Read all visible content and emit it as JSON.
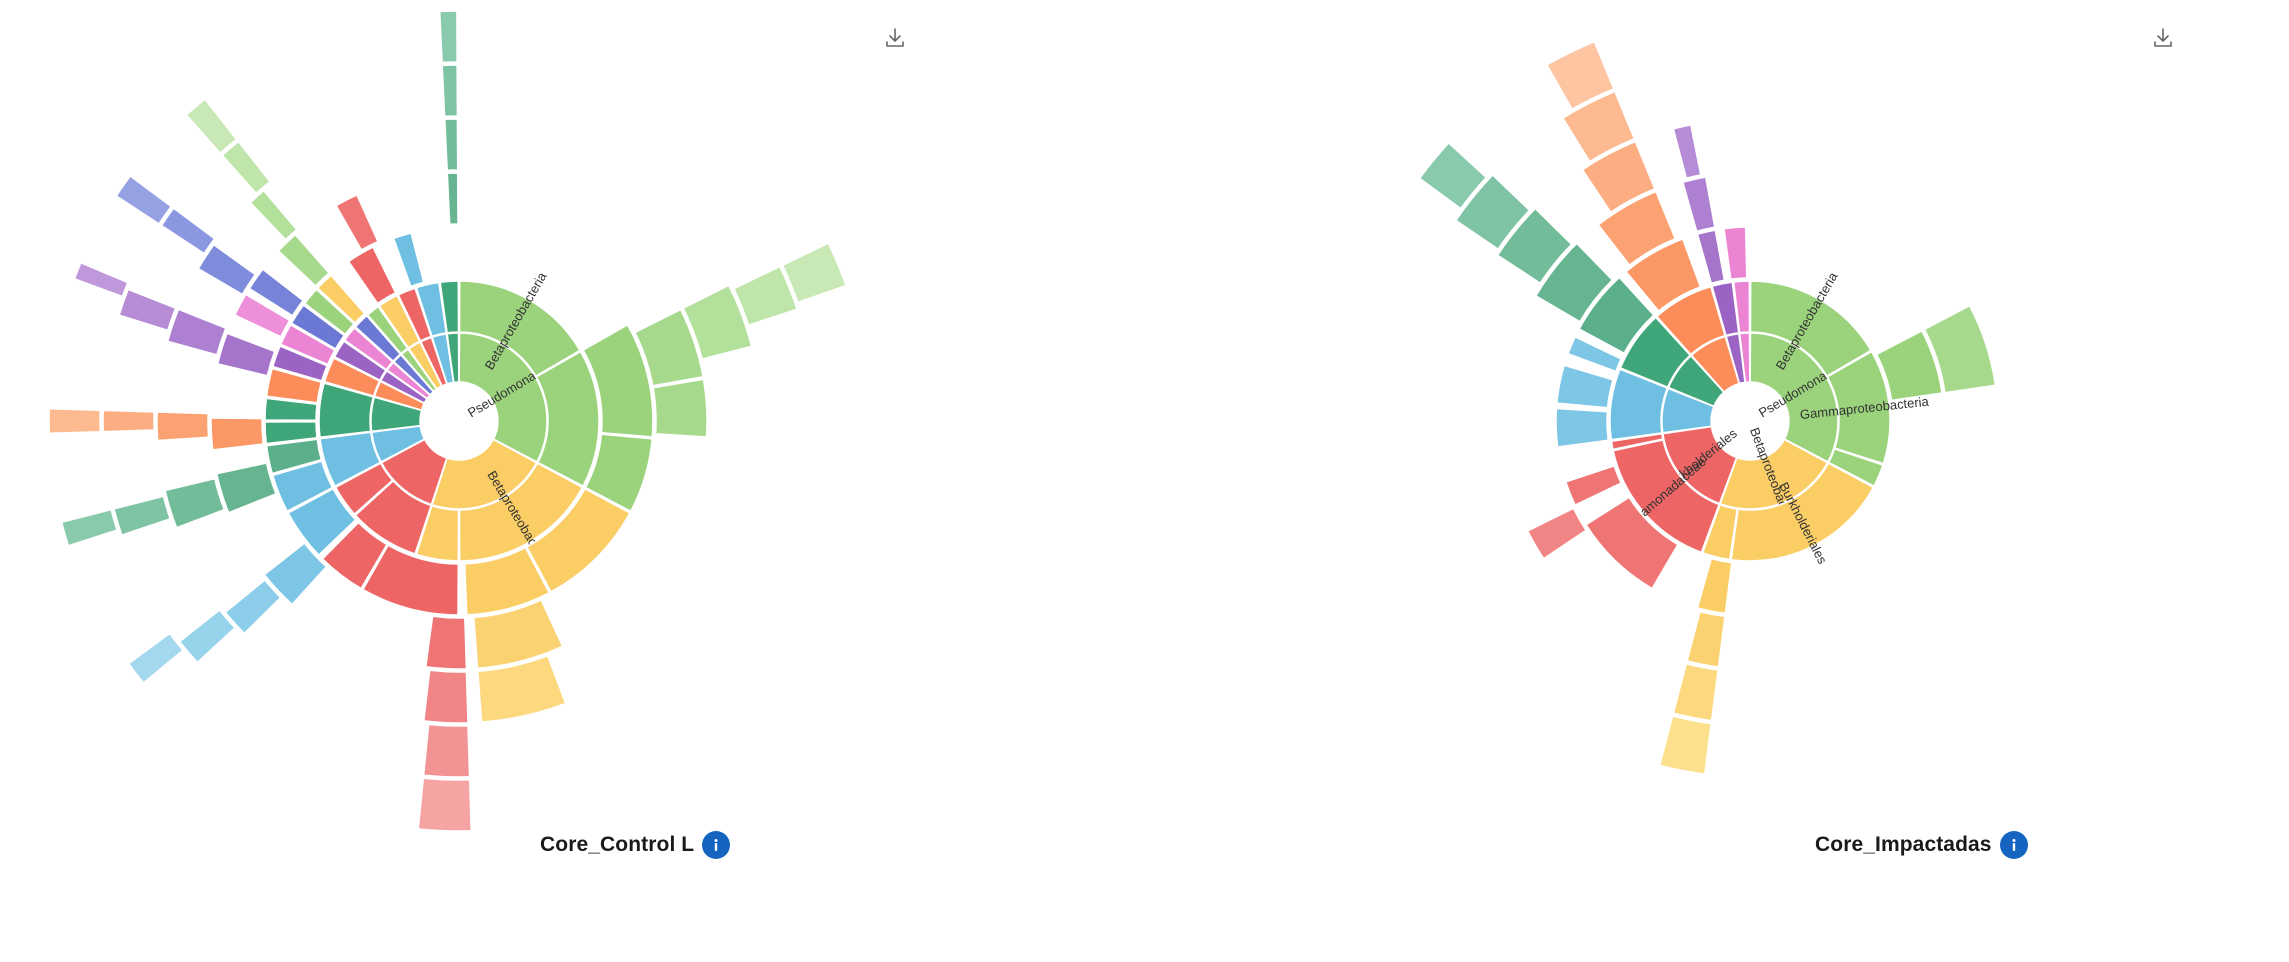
{
  "page": {
    "download_icon": "download-icon",
    "info_icon": "info-icon",
    "info_color": "#1565c0"
  },
  "chart_data": [
    {
      "type": "sunburst",
      "title": "Core_Control L",
      "center": "hole",
      "levels": 7,
      "segments": [
        {
          "level": 0,
          "start": 0,
          "end": 118,
          "color": "#9bd37d",
          "label": "Pseudomonadota"
        },
        {
          "level": 0,
          "start": 118,
          "end": 198,
          "color": "#fbcd65",
          "label": ""
        },
        {
          "level": 0,
          "start": 198,
          "end": 242,
          "color": "#ed6565",
          "label": ""
        },
        {
          "level": 0,
          "start": 242,
          "end": 263,
          "color": "#6ebfe2",
          "label": ""
        },
        {
          "level": 0,
          "start": 263,
          "end": 286,
          "color": "#3fa679",
          "label": ""
        },
        {
          "level": 0,
          "start": 286,
          "end": 297,
          "color": "#fc8c5a",
          "label": ""
        },
        {
          "level": 0,
          "start": 297,
          "end": 305,
          "color": "#9a63c4",
          "label": ""
        },
        {
          "level": 0,
          "start": 305,
          "end": 312,
          "color": "#ec84d4",
          "label": ""
        },
        {
          "level": 0,
          "start": 312,
          "end": 319,
          "color": "#6b78d4",
          "label": ""
        },
        {
          "level": 0,
          "start": 319,
          "end": 325,
          "color": "#9bd37d",
          "label": ""
        },
        {
          "level": 0,
          "start": 325,
          "end": 334,
          "color": "#fbcd65",
          "label": ""
        },
        {
          "level": 0,
          "start": 334,
          "end": 342,
          "color": "#ed6565",
          "label": ""
        },
        {
          "level": 0,
          "start": 342,
          "end": 352,
          "color": "#6ebfe2",
          "label": ""
        },
        {
          "level": 0,
          "start": 352,
          "end": 360,
          "color": "#3fa679",
          "label": ""
        },
        {
          "level": 1,
          "start": 0,
          "end": 60,
          "color": "#9bd37d",
          "label": "Betaproteobacteria"
        },
        {
          "level": 1,
          "start": 60,
          "end": 118,
          "color": "#9bd37d",
          "label": ""
        },
        {
          "level": 1,
          "start": 118,
          "end": 180,
          "color": "#fbcd65",
          "label": "Betaproteobacteria"
        },
        {
          "level": 1,
          "start": 180,
          "end": 198,
          "color": "#fbcd65",
          "label": ""
        },
        {
          "level": 1,
          "start": 198,
          "end": 228,
          "color": "#ed6565",
          "label": ""
        },
        {
          "level": 1,
          "start": 228,
          "end": 242,
          "color": "#ed6565",
          "label": ""
        },
        {
          "level": 1,
          "start": 242,
          "end": 263,
          "color": "#6ebfe2",
          "label": ""
        },
        {
          "level": 1,
          "start": 263,
          "end": 286,
          "color": "#3fa679",
          "label": ""
        },
        {
          "level": 1,
          "start": 286,
          "end": 297,
          "color": "#fc8c5a",
          "label": ""
        },
        {
          "level": 1,
          "start": 297,
          "end": 305,
          "color": "#9a63c4",
          "label": ""
        },
        {
          "level": 1,
          "start": 305,
          "end": 312,
          "color": "#ec84d4",
          "label": ""
        },
        {
          "level": 1,
          "start": 312,
          "end": 319,
          "color": "#6b78d4",
          "label": ""
        },
        {
          "level": 1,
          "start": 319,
          "end": 325,
          "color": "#9bd37d",
          "label": ""
        },
        {
          "level": 1,
          "start": 325,
          "end": 334,
          "color": "#fbcd65",
          "label": ""
        },
        {
          "level": 1,
          "start": 334,
          "end": 342,
          "color": "#ed6565",
          "label": ""
        },
        {
          "level": 1,
          "start": 342,
          "end": 352,
          "color": "#6ebfe2",
          "label": ""
        },
        {
          "level": 1,
          "start": 352,
          "end": 360,
          "color": "#3fa679",
          "label": ""
        },
        {
          "level": 2,
          "start": 60,
          "end": 95,
          "color": "#9bd37d",
          "label": ""
        },
        {
          "level": 2,
          "start": 95,
          "end": 118,
          "color": "#9bd37d",
          "label": ""
        },
        {
          "level": 2,
          "start": 118,
          "end": 152,
          "color": "#fbcd65",
          "label": ""
        },
        {
          "level": 2,
          "start": 152,
          "end": 178,
          "color": "#fbcd65",
          "label": ""
        },
        {
          "level": 2,
          "start": 180,
          "end": 210,
          "color": "#ed6565",
          "label": ""
        },
        {
          "level": 2,
          "start": 210,
          "end": 225,
          "color": "#ed6565",
          "label": ""
        },
        {
          "level": 2,
          "start": 226,
          "end": 242,
          "color": "#6ebfe2",
          "label": ""
        },
        {
          "level": 2,
          "start": 242,
          "end": 254,
          "color": "#6ebfe2",
          "label": ""
        },
        {
          "level": 2,
          "start": 254,
          "end": 263,
          "color": "#5bb08b",
          "label": ""
        },
        {
          "level": 2,
          "start": 263,
          "end": 270,
          "color": "#3fa679",
          "label": ""
        },
        {
          "level": 2,
          "start": 270,
          "end": 277,
          "color": "#3fa679",
          "label": ""
        },
        {
          "level": 2,
          "start": 277,
          "end": 286,
          "color": "#fc8c5a",
          "label": ""
        },
        {
          "level": 2,
          "start": 286,
          "end": 293,
          "color": "#9a63c4",
          "label": ""
        },
        {
          "level": 2,
          "start": 293,
          "end": 300,
          "color": "#ec84d4",
          "label": ""
        },
        {
          "level": 2,
          "start": 300,
          "end": 307,
          "color": "#6b78d4",
          "label": ""
        },
        {
          "level": 2,
          "start": 307,
          "end": 313,
          "color": "#9bd37d",
          "label": ""
        },
        {
          "level": 2,
          "start": 313,
          "end": 319,
          "color": "#fbcd65",
          "label": ""
        },
        {
          "level": 2,
          "start": 325,
          "end": 334,
          "color": "#ed6565",
          "label": ""
        },
        {
          "level": 2,
          "start": 340,
          "end": 346,
          "color": "#6ebfe2",
          "label": ""
        },
        {
          "level": 3,
          "start": 63,
          "end": 80,
          "color": "#a6d98b",
          "label": ""
        },
        {
          "level": 3,
          "start": 80,
          "end": 94,
          "color": "#a6d98b",
          "label": ""
        },
        {
          "level": 3,
          "start": 155,
          "end": 176,
          "color": "#fbd271",
          "label": ""
        },
        {
          "level": 3,
          "start": 178,
          "end": 188,
          "color": "#ef7474",
          "label": ""
        },
        {
          "level": 3,
          "start": 222,
          "end": 232,
          "color": "#7ec6e6",
          "label": ""
        },
        {
          "level": 3,
          "start": 248,
          "end": 258,
          "color": "#66b590",
          "label": ""
        },
        {
          "level": 3,
          "start": 263,
          "end": 271,
          "color": "#fc9766",
          "label": ""
        },
        {
          "level": 3,
          "start": 283,
          "end": 291,
          "color": "#a574cb",
          "label": ""
        },
        {
          "level": 3,
          "start": 295,
          "end": 301,
          "color": "#ee90d9",
          "label": ""
        },
        {
          "level": 3,
          "start": 302,
          "end": 308,
          "color": "#7783d8",
          "label": ""
        },
        {
          "level": 3,
          "start": 313,
          "end": 319,
          "color": "#a6d98b",
          "label": ""
        },
        {
          "level": 3,
          "start": 330,
          "end": 336,
          "color": "#ef7474",
          "label": ""
        },
        {
          "level": 3,
          "start": 357,
          "end": 360,
          "color": "#66b590",
          "label": ""
        },
        {
          "level": 4,
          "start": 63,
          "end": 76,
          "color": "#b3e09a",
          "label": ""
        },
        {
          "level": 4,
          "start": 159,
          "end": 176,
          "color": "#fcd97f",
          "label": ""
        },
        {
          "level": 4,
          "start": 178,
          "end": 187,
          "color": "#f18484",
          "label": ""
        },
        {
          "level": 4,
          "start": 225,
          "end": 231,
          "color": "#8ccdea",
          "label": ""
        },
        {
          "level": 4,
          "start": 249,
          "end": 257,
          "color": "#72bc99",
          "label": ""
        },
        {
          "level": 4,
          "start": 266,
          "end": 272,
          "color": "#fca272",
          "label": ""
        },
        {
          "level": 4,
          "start": 285,
          "end": 292,
          "color": "#ad80d1",
          "label": ""
        },
        {
          "level": 4,
          "start": 300,
          "end": 306,
          "color": "#7f8cdc",
          "label": ""
        },
        {
          "level": 4,
          "start": 316,
          "end": 320,
          "color": "#b3e09a",
          "label": ""
        },
        {
          "level": 4,
          "start": 357,
          "end": 360,
          "color": "#72bc99",
          "label": ""
        },
        {
          "level": 5,
          "start": 64,
          "end": 72,
          "color": "#bfe5aa",
          "label": ""
        },
        {
          "level": 5,
          "start": 178,
          "end": 186,
          "color": "#f39494",
          "label": ""
        },
        {
          "level": 5,
          "start": 227,
          "end": 232,
          "color": "#98d3ec",
          "label": ""
        },
        {
          "level": 5,
          "start": 251,
          "end": 256,
          "color": "#7ec3a3",
          "label": ""
        },
        {
          "level": 5,
          "start": 268,
          "end": 272,
          "color": "#fcae82",
          "label": ""
        },
        {
          "level": 5,
          "start": 287,
          "end": 292,
          "color": "#b68cd6",
          "label": ""
        },
        {
          "level": 5,
          "start": 303,
          "end": 307,
          "color": "#8b97e0",
          "label": ""
        },
        {
          "level": 5,
          "start": 318,
          "end": 322,
          "color": "#bfe5aa",
          "label": ""
        },
        {
          "level": 5,
          "start": 357,
          "end": 360,
          "color": "#7ec3a3",
          "label": ""
        },
        {
          "level": 6,
          "start": 64,
          "end": 71,
          "color": "#c8e9b5",
          "label": ""
        },
        {
          "level": 6,
          "start": 178,
          "end": 186,
          "color": "#f5a3a3",
          "label": ""
        },
        {
          "level": 6,
          "start": 230,
          "end": 234,
          "color": "#a3d8ef",
          "label": ""
        },
        {
          "level": 6,
          "start": 252,
          "end": 256,
          "color": "#89caad",
          "label": ""
        },
        {
          "level": 6,
          "start": 268,
          "end": 272,
          "color": "#fdba90",
          "label": ""
        },
        {
          "level": 6,
          "start": 290,
          "end": 293,
          "color": "#bf98db",
          "label": ""
        },
        {
          "level": 6,
          "start": 303,
          "end": 307,
          "color": "#96a1e4",
          "label": ""
        },
        {
          "level": 6,
          "start": 318,
          "end": 322,
          "color": "#c8e9b5",
          "label": ""
        },
        {
          "level": 6,
          "start": 357,
          "end": 360,
          "color": "#89caad",
          "label": ""
        }
      ]
    },
    {
      "type": "sunburst",
      "title": "Core_Impactadas",
      "center": "hole",
      "levels": 7,
      "segments": [
        {
          "level": 0,
          "start": 0,
          "end": 118,
          "color": "#9bd37d",
          "label": "Pseudomonadota"
        },
        {
          "level": 0,
          "start": 118,
          "end": 200,
          "color": "#fbcd65",
          "label": "Betaproteobacteria"
        },
        {
          "level": 0,
          "start": 200,
          "end": 262,
          "color": "#ed6565",
          "label": "Burkholderiales"
        },
        {
          "level": 0,
          "start": 262,
          "end": 292,
          "color": "#6ebfe2",
          "label": ""
        },
        {
          "level": 0,
          "start": 292,
          "end": 318,
          "color": "#3fa679",
          "label": ""
        },
        {
          "level": 0,
          "start": 318,
          "end": 344,
          "color": "#fc8c5a",
          "label": ""
        },
        {
          "level": 0,
          "start": 344,
          "end": 353,
          "color": "#9a63c4",
          "label": ""
        },
        {
          "level": 0,
          "start": 353,
          "end": 360,
          "color": "#ec84d4",
          "label": ""
        },
        {
          "level": 1,
          "start": 0,
          "end": 60,
          "color": "#9bd37d",
          "label": "Betaproteobacteria"
        },
        {
          "level": 1,
          "start": 60,
          "end": 108,
          "color": "#9bd37d",
          "label": "Gammaproteobacteria"
        },
        {
          "level": 1,
          "start": 108,
          "end": 118,
          "color": "#9bd37d",
          "label": ""
        },
        {
          "level": 1,
          "start": 118,
          "end": 188,
          "color": "#fbcd65",
          "label": "Burkholderiales"
        },
        {
          "level": 1,
          "start": 188,
          "end": 200,
          "color": "#fbcd65",
          "label": ""
        },
        {
          "level": 1,
          "start": 200,
          "end": 258,
          "color": "#ed6565",
          "label": "Comamonadaceae"
        },
        {
          "level": 1,
          "start": 258,
          "end": 262,
          "color": "#ed6565",
          "label": ""
        },
        {
          "level": 1,
          "start": 262,
          "end": 292,
          "color": "#6ebfe2",
          "label": ""
        },
        {
          "level": 1,
          "start": 292,
          "end": 318,
          "color": "#3fa679",
          "label": ""
        },
        {
          "level": 1,
          "start": 318,
          "end": 344,
          "color": "#fc8c5a",
          "label": ""
        },
        {
          "level": 1,
          "start": 344,
          "end": 353,
          "color": "#9a63c4",
          "label": ""
        },
        {
          "level": 1,
          "start": 353,
          "end": 360,
          "color": "#ec84d4",
          "label": ""
        },
        {
          "level": 2,
          "start": 62,
          "end": 82,
          "color": "#9bd37d",
          "label": ""
        },
        {
          "level": 2,
          "start": 187,
          "end": 196,
          "color": "#fbcd65",
          "label": ""
        },
        {
          "level": 2,
          "start": 210,
          "end": 238,
          "color": "#ef7474",
          "label": ""
        },
        {
          "level": 2,
          "start": 244,
          "end": 252,
          "color": "#ef7474",
          "label": ""
        },
        {
          "level": 2,
          "start": 262,
          "end": 274,
          "color": "#7ec6e6",
          "label": ""
        },
        {
          "level": 2,
          "start": 275,
          "end": 287,
          "color": "#7ec6e6",
          "label": ""
        },
        {
          "level": 2,
          "start": 290,
          "end": 296,
          "color": "#7ec6e6",
          "label": ""
        },
        {
          "level": 2,
          "start": 298,
          "end": 318,
          "color": "#5bb08b",
          "label": ""
        },
        {
          "level": 2,
          "start": 320,
          "end": 340,
          "color": "#fc9766",
          "label": ""
        },
        {
          "level": 2,
          "start": 344,
          "end": 350,
          "color": "#a574cb",
          "label": ""
        },
        {
          "level": 2,
          "start": 352,
          "end": 359,
          "color": "#ec84d4",
          "label": ""
        },
        {
          "level": 3,
          "start": 62,
          "end": 82,
          "color": "#a6d98b",
          "label": ""
        },
        {
          "level": 3,
          "start": 187,
          "end": 195,
          "color": "#fbd271",
          "label": ""
        },
        {
          "level": 3,
          "start": 236,
          "end": 244,
          "color": "#f18484",
          "label": ""
        },
        {
          "level": 3,
          "start": 300,
          "end": 316,
          "color": "#66b590",
          "label": ""
        },
        {
          "level": 3,
          "start": 322,
          "end": 338,
          "color": "#fca272",
          "label": ""
        },
        {
          "level": 3,
          "start": 344,
          "end": 350,
          "color": "#ad80d1",
          "label": ""
        },
        {
          "level": 4,
          "start": 187,
          "end": 195,
          "color": "#fcd97f",
          "label": ""
        },
        {
          "level": 4,
          "start": 303,
          "end": 315,
          "color": "#72bc99",
          "label": ""
        },
        {
          "level": 4,
          "start": 326,
          "end": 338,
          "color": "#fcae82",
          "label": ""
        },
        {
          "level": 4,
          "start": 345,
          "end": 349,
          "color": "#b68cd6",
          "label": ""
        },
        {
          "level": 5,
          "start": 187,
          "end": 195,
          "color": "#fde08e",
          "label": ""
        },
        {
          "level": 5,
          "start": 304,
          "end": 314,
          "color": "#7ec3a3",
          "label": ""
        },
        {
          "level": 5,
          "start": 328,
          "end": 338,
          "color": "#fdba90",
          "label": ""
        },
        {
          "level": 6,
          "start": 306,
          "end": 313,
          "color": "#89caad",
          "label": ""
        },
        {
          "level": 6,
          "start": 330,
          "end": 338,
          "color": "#fdc5a2",
          "label": ""
        }
      ]
    }
  ]
}
